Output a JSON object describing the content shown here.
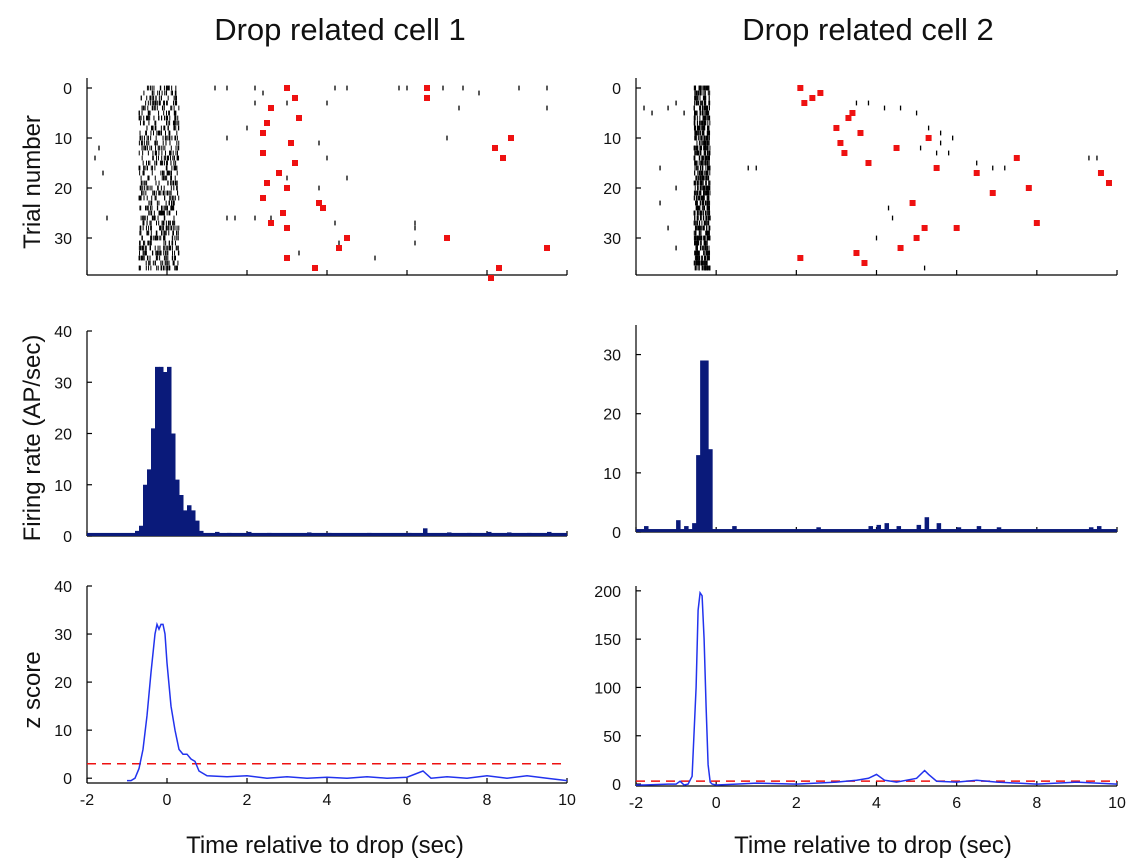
{
  "page": {
    "ylabels": [
      "Trial number",
      "Firing rate (AP/sec)",
      "z score"
    ],
    "xlabel": "Time relative to drop (sec)",
    "colors": {
      "raster": "#000000",
      "marker": "#ee1111",
      "psth": "#0a1a7a",
      "zline": "#2233ee",
      "threshold": "#ee1111"
    }
  },
  "chart_data": [
    {
      "title": "Drop related cell 1",
      "type": "raster",
      "x_ticks": [
        -2,
        0,
        2,
        4,
        6,
        8,
        10
      ],
      "xlim": [
        -2,
        10
      ],
      "ylim": [
        0,
        37
      ],
      "y_inverted": true,
      "y_ticks": [
        0,
        10,
        20,
        30
      ],
      "ylabel": "Trial number",
      "spike_window": [
        -0.7,
        0.3
      ],
      "red_markers": [
        [
          3.0,
          0
        ],
        [
          2.6,
          4
        ],
        [
          3.2,
          2
        ],
        [
          2.5,
          7
        ],
        [
          3.3,
          6
        ],
        [
          2.4,
          9
        ],
        [
          3.1,
          11
        ],
        [
          2.4,
          13
        ],
        [
          3.2,
          15
        ],
        [
          2.8,
          17
        ],
        [
          2.5,
          19
        ],
        [
          3.0,
          20
        ],
        [
          2.4,
          22
        ],
        [
          3.8,
          23
        ],
        [
          3.9,
          24
        ],
        [
          2.9,
          25
        ],
        [
          2.6,
          27
        ],
        [
          3.0,
          28
        ],
        [
          4.3,
          32
        ],
        [
          4.5,
          30
        ],
        [
          3.0,
          34
        ],
        [
          3.7,
          36
        ],
        [
          7.0,
          30
        ],
        [
          8.2,
          12
        ],
        [
          8.4,
          14
        ],
        [
          8.6,
          10
        ],
        [
          9.5,
          32
        ],
        [
          8.3,
          36
        ],
        [
          8.1,
          38
        ],
        [
          6.5,
          2
        ],
        [
          6.5,
          0
        ]
      ],
      "extra_ticks": [
        [
          1.2,
          0
        ],
        [
          1.5,
          0
        ],
        [
          2.2,
          0
        ],
        [
          2.4,
          1
        ],
        [
          4.2,
          0
        ],
        [
          4.5,
          0
        ],
        [
          5.8,
          0
        ],
        [
          6.0,
          0
        ],
        [
          6.9,
          0
        ],
        [
          7.4,
          0
        ],
        [
          7.8,
          1
        ],
        [
          8.8,
          0
        ],
        [
          9.5,
          0
        ],
        [
          2.2,
          3
        ],
        [
          3.0,
          3
        ],
        [
          4.0,
          3
        ],
        [
          7.3,
          4
        ],
        [
          6.5,
          2
        ],
        [
          9.5,
          4
        ],
        [
          -1.7,
          12
        ],
        [
          -1.8,
          14
        ],
        [
          -1.6,
          17
        ],
        [
          1.5,
          10
        ],
        [
          2.0,
          8
        ],
        [
          3.8,
          11
        ],
        [
          4.0,
          14
        ],
        [
          7.0,
          10
        ],
        [
          3.0,
          18
        ],
        [
          3.8,
          20
        ],
        [
          4.5,
          18
        ],
        [
          1.5,
          26
        ],
        [
          1.7,
          26
        ],
        [
          2.2,
          26
        ],
        [
          2.6,
          26
        ],
        [
          4.2,
          27
        ],
        [
          6.2,
          28
        ],
        [
          6.2,
          27
        ],
        [
          3.3,
          33
        ],
        [
          4.3,
          31
        ],
        [
          6.2,
          31
        ],
        [
          5.2,
          34
        ],
        [
          -1.5,
          26
        ]
      ]
    },
    {
      "title": "Drop related cell 2",
      "type": "raster",
      "x_ticks": [
        -2,
        0,
        2,
        4,
        6,
        8,
        10
      ],
      "xlim": [
        -2,
        10
      ],
      "ylim": [
        0,
        37
      ],
      "y_inverted": true,
      "y_ticks": [
        0,
        10,
        20,
        30
      ],
      "ylabel": "Trial number",
      "spike_window": [
        -0.55,
        -0.15
      ],
      "red_markers": [
        [
          2.1,
          0
        ],
        [
          2.4,
          2
        ],
        [
          2.2,
          3
        ],
        [
          2.6,
          1
        ],
        [
          3.3,
          6
        ],
        [
          3.0,
          8
        ],
        [
          3.1,
          11
        ],
        [
          3.2,
          13
        ],
        [
          3.4,
          5
        ],
        [
          3.6,
          9
        ],
        [
          3.8,
          15
        ],
        [
          4.5,
          12
        ],
        [
          5.3,
          10
        ],
        [
          5.5,
          16
        ],
        [
          6.5,
          17
        ],
        [
          7.5,
          14
        ],
        [
          6.9,
          21
        ],
        [
          7.8,
          20
        ],
        [
          8.0,
          27
        ],
        [
          9.6,
          17
        ],
        [
          9.8,
          19
        ],
        [
          5.2,
          28
        ],
        [
          5.0,
          30
        ],
        [
          4.9,
          23
        ],
        [
          4.6,
          32
        ],
        [
          6.0,
          28
        ],
        [
          3.5,
          33
        ],
        [
          3.7,
          35
        ],
        [
          2.1,
          34
        ]
      ],
      "extra_ticks": [
        [
          -1.8,
          4
        ],
        [
          -1.6,
          5
        ],
        [
          -1.2,
          4
        ],
        [
          -1.0,
          3
        ],
        [
          -0.8,
          5
        ],
        [
          3.5,
          3
        ],
        [
          3.8,
          3
        ],
        [
          4.2,
          4
        ],
        [
          4.6,
          4
        ],
        [
          5.0,
          5
        ],
        [
          5.3,
          8
        ],
        [
          5.6,
          9
        ],
        [
          5.9,
          10
        ],
        [
          5.1,
          12
        ],
        [
          5.8,
          13
        ],
        [
          6.5,
          15
        ],
        [
          6.9,
          16
        ],
        [
          7.2,
          16
        ],
        [
          9.3,
          14
        ],
        [
          9.5,
          14
        ],
        [
          0.8,
          16
        ],
        [
          1.0,
          16
        ],
        [
          -1.4,
          16
        ],
        [
          -1.0,
          20
        ],
        [
          4.3,
          24
        ],
        [
          4.4,
          26
        ],
        [
          -1.4,
          23
        ],
        [
          -1.2,
          28
        ],
        [
          -1.0,
          32
        ],
        [
          4.0,
          30
        ],
        [
          5.2,
          36
        ],
        [
          5.6,
          11
        ],
        [
          5.5,
          13
        ]
      ]
    },
    {
      "type": "bar",
      "xlim": [
        -2,
        10
      ],
      "ylim": [
        0,
        40
      ],
      "y_ticks": [
        0,
        10,
        20,
        30,
        40
      ],
      "ylabel": "Firing rate (AP/sec)",
      "bin_width": 0.1,
      "x": [
        -0.8,
        -0.7,
        -0.6,
        -0.5,
        -0.4,
        -0.3,
        -0.2,
        -0.1,
        0.0,
        0.1,
        0.2,
        0.3,
        0.4,
        0.5,
        0.6,
        0.7,
        0.8,
        1.0,
        1.2,
        1.5,
        2.0,
        2.2,
        2.5,
        3.0,
        3.5,
        4.0,
        4.5,
        5.0,
        5.5,
        6.0,
        6.4,
        7.0,
        7.5,
        8.0,
        8.5,
        9.0,
        9.5
      ],
      "values": [
        1,
        2,
        10,
        13,
        21,
        33,
        33,
        32,
        33,
        20,
        11,
        8,
        5,
        6,
        5,
        3,
        1,
        0.5,
        0.8,
        0.6,
        0.8,
        0.5,
        0.6,
        0.5,
        0.7,
        0.6,
        0.5,
        0.6,
        0.5,
        0.6,
        1.5,
        0.7,
        0.6,
        0.8,
        0.7,
        0.6,
        0.8
      ],
      "baseline": 0.6
    },
    {
      "type": "bar",
      "xlim": [
        -2,
        10
      ],
      "ylim": [
        0,
        35
      ],
      "y_ticks": [
        0,
        10,
        20,
        30
      ],
      "ylabel": "Firing rate (AP/sec)",
      "bin_width": 0.1,
      "x": [
        -1.8,
        -1.0,
        -0.8,
        -0.6,
        -0.5,
        -0.4,
        -0.3,
        -0.2,
        0.4,
        2.5,
        3.8,
        4.0,
        4.2,
        4.5,
        5.0,
        5.2,
        5.5,
        6.0,
        6.5,
        7.0,
        9.3,
        9.5
      ],
      "values": [
        1,
        2,
        1,
        1.5,
        13,
        29,
        29,
        14,
        1,
        0.8,
        1,
        1.2,
        1.5,
        1,
        1.2,
        2.5,
        1.5,
        0.8,
        1,
        0.8,
        0.8,
        1
      ],
      "baseline": 0.5
    },
    {
      "type": "line",
      "xlim": [
        -2,
        10
      ],
      "ylim": [
        -1,
        40
      ],
      "x_ticks": [
        -2,
        0,
        2,
        4,
        6,
        8,
        10
      ],
      "y_ticks": [
        0,
        10,
        20,
        30,
        40
      ],
      "ylabel": "z score",
      "xlabel": "Time relative to drop (sec)",
      "threshold": 3,
      "x": [
        -1.0,
        -0.9,
        -0.8,
        -0.7,
        -0.6,
        -0.5,
        -0.4,
        -0.3,
        -0.25,
        -0.2,
        -0.15,
        -0.1,
        -0.05,
        0.0,
        0.1,
        0.2,
        0.3,
        0.4,
        0.5,
        0.6,
        0.7,
        0.8,
        1.0,
        1.5,
        2.0,
        2.5,
        3.0,
        3.5,
        4.0,
        4.5,
        5.0,
        5.5,
        6.0,
        6.4,
        6.6,
        7.0,
        7.5,
        8.0,
        8.5,
        9.0,
        9.5,
        10.0
      ],
      "values": [
        -0.5,
        -0.5,
        0,
        2,
        6,
        13,
        22,
        30,
        32,
        31,
        32,
        32,
        30,
        24,
        15,
        10,
        6,
        5,
        5,
        4,
        3.5,
        1.5,
        0.5,
        0.3,
        0.5,
        0,
        0.3,
        0,
        0.2,
        0,
        0.3,
        0,
        0.2,
        1.5,
        0,
        0.3,
        0,
        0.5,
        0,
        0.5,
        0,
        -0.5
      ]
    },
    {
      "type": "line",
      "xlim": [
        -2,
        10
      ],
      "ylim": [
        -2,
        205
      ],
      "x_ticks": [
        -2,
        0,
        2,
        4,
        6,
        8,
        10
      ],
      "y_ticks": [
        0,
        50,
        100,
        150,
        200
      ],
      "ylabel": "z score",
      "xlabel": "Time relative to drop (sec)",
      "threshold": 3,
      "x": [
        -2.0,
        -1.8,
        -1.2,
        -1.0,
        -0.9,
        -0.8,
        -0.7,
        -0.6,
        -0.5,
        -0.45,
        -0.4,
        -0.35,
        -0.3,
        -0.25,
        -0.2,
        -0.15,
        -0.1,
        0.0,
        0.5,
        1.0,
        2.0,
        3.0,
        3.5,
        3.8,
        4.0,
        4.2,
        4.5,
        5.0,
        5.2,
        5.3,
        5.5,
        6.0,
        6.5,
        7.0,
        8.0,
        9.0,
        9.5,
        10.0
      ],
      "values": [
        -1,
        -1,
        0,
        0,
        3,
        -1,
        0,
        8,
        100,
        180,
        198,
        195,
        150,
        80,
        20,
        2,
        0,
        -1,
        0,
        1,
        0,
        2,
        4,
        6,
        10,
        4,
        2,
        6,
        14,
        10,
        3,
        2,
        4,
        2,
        0,
        2,
        1,
        0
      ]
    }
  ]
}
